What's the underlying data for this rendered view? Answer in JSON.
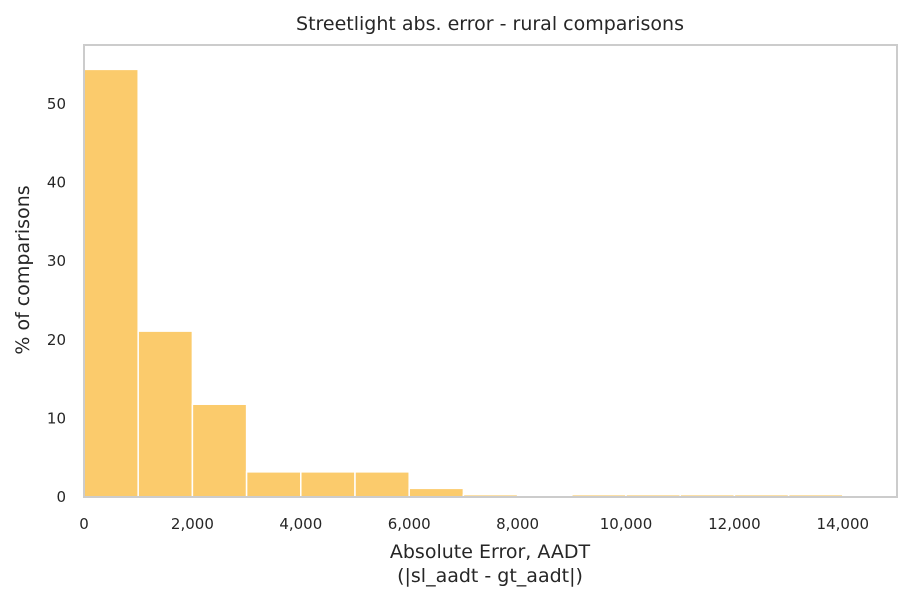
{
  "chart_data": {
    "type": "bar",
    "title": "Streetlight abs. error - rural comparisons",
    "xlabel_line1": "Absolute Error, AADT",
    "xlabel_line2": "(|sl_aadt - gt_aadt|)",
    "ylabel": "% of comparisons",
    "xlim": [
      0,
      15000
    ],
    "ylim": [
      0,
      57.5
    ],
    "grid": false,
    "bar_color": "#fbcb6c",
    "x_ticks": [
      0,
      2000,
      4000,
      6000,
      8000,
      10000,
      12000,
      14000
    ],
    "x_tick_labels": [
      "0",
      "2,000",
      "4,000",
      "6,000",
      "8,000",
      "10,000",
      "12,000",
      "14,000"
    ],
    "y_ticks": [
      0,
      10,
      20,
      30,
      40,
      50
    ],
    "y_tick_labels": [
      "0",
      "10",
      "20",
      "30",
      "40",
      "50"
    ],
    "bin_edges": [
      0,
      1000,
      2000,
      3000,
      4000,
      5000,
      6000,
      7000,
      8000,
      9000,
      10000,
      11000,
      12000,
      13000,
      14000,
      15000
    ],
    "values": [
      54.4,
      21.1,
      11.8,
      3.2,
      3.2,
      3.2,
      1.1,
      0.3,
      0.0,
      0.3,
      0.3,
      0.3,
      0.3,
      0.3,
      0.0
    ]
  }
}
